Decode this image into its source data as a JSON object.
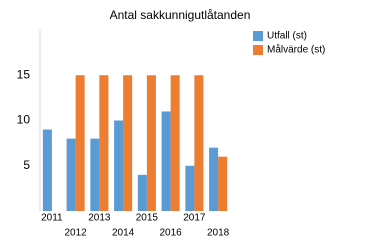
{
  "chart_data": {
    "type": "bar",
    "title": "Antal sakkunnigutlåtanden",
    "categories": [
      "2011",
      "2012",
      "2013",
      "2014",
      "2015",
      "2016",
      "2017",
      "2018"
    ],
    "series": [
      {
        "name": "Utfall (st)",
        "color": "#5b9bd5",
        "values": [
          9,
          8,
          8,
          10,
          4,
          11,
          5,
          7
        ]
      },
      {
        "name": "Målvärde (st)",
        "color": "#ed7d31",
        "values": [
          null,
          15,
          15,
          15,
          15,
          15,
          15,
          6
        ]
      }
    ],
    "ylim": [
      0,
      20
    ],
    "yticks": [
      5,
      10,
      15
    ],
    "legend": "right"
  }
}
